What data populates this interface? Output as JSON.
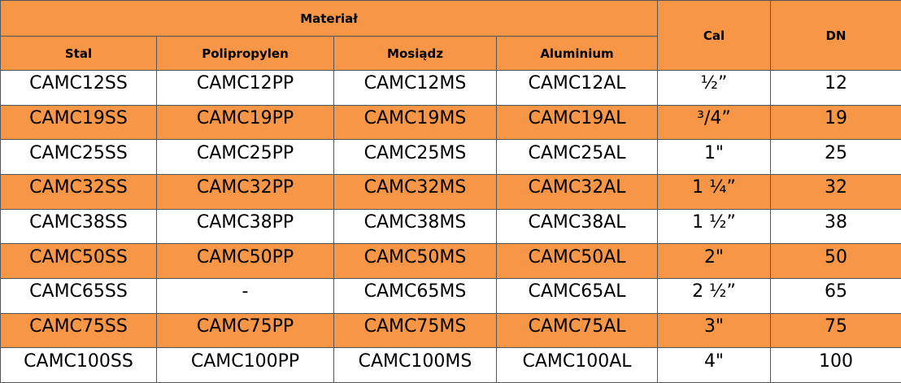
{
  "table": {
    "header": {
      "group": "Materiał",
      "columns": [
        "Stal",
        "Polipropylen",
        "Mosiądz",
        "Aluminium"
      ],
      "cal": "Cal",
      "dn": "DN"
    },
    "rows": [
      [
        "CAMC12SS",
        "CAMC12PP",
        "CAMC12MS",
        "CAMC12AL",
        "½”",
        12
      ],
      [
        "CAMC19SS",
        "CAMC19PP",
        "CAMC19MS",
        "CAMC19AL",
        "³/4”",
        19
      ],
      [
        "CAMC25SS",
        "CAMC25PP",
        "CAMC25MS",
        "CAMC25AL",
        "1\"",
        25
      ],
      [
        "CAMC32SS",
        "CAMC32PP",
        "CAMC32MS",
        "CAMC32AL",
        "1 ¼”",
        32
      ],
      [
        "CAMC38SS",
        "CAMC38PP",
        "CAMC38MS",
        "CAMC38AL",
        "1 ½”",
        38
      ],
      [
        "CAMC50SS",
        "CAMC50PP",
        "CAMC50MS",
        "CAMC50AL",
        "2\"",
        50
      ],
      [
        "CAMC65SS",
        "-",
        "CAMC65MS",
        "CAMC65AL",
        "2 ½”",
        65
      ],
      [
        "CAMC75SS",
        "CAMC75PP",
        "CAMC75MS",
        "CAMC75AL",
        "3\"",
        75
      ],
      [
        "CAMC100SS",
        "CAMC100PP",
        "CAMC100MS",
        "CAMC100AL",
        "4\"",
        100
      ]
    ]
  }
}
